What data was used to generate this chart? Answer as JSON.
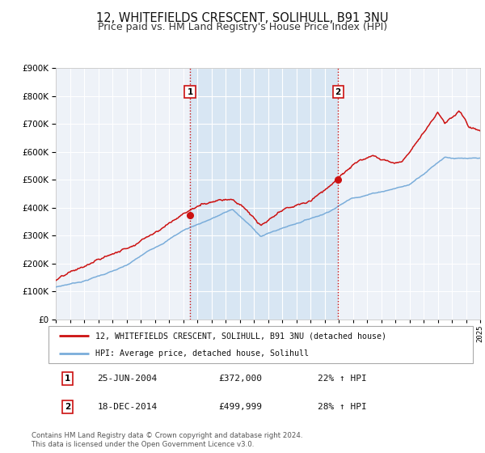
{
  "title": "12, WHITEFIELDS CRESCENT, SOLIHULL, B91 3NU",
  "subtitle": "Price paid vs. HM Land Registry's House Price Index (HPI)",
  "title_fontsize": 10.5,
  "subtitle_fontsize": 9,
  "hpi_color": "#7aadda",
  "price_color": "#cc1111",
  "sale1_year": 2004.486,
  "sale1_price": 372000,
  "sale1_label": "25-JUN-2004",
  "sale1_pct": "22%",
  "sale2_year": 2014.956,
  "sale2_price": 499999,
  "sale2_label": "18-DEC-2014",
  "sale2_pct": "28%",
  "xmin": 1995,
  "xmax": 2025,
  "ymin": 0,
  "ymax": 900000,
  "yticks": [
    0,
    100000,
    200000,
    300000,
    400000,
    500000,
    600000,
    700000,
    800000,
    900000
  ],
  "legend_label_price": "12, WHITEFIELDS CRESCENT, SOLIHULL, B91 3NU (detached house)",
  "legend_label_hpi": "HPI: Average price, detached house, Solihull",
  "footnote1": "Contains HM Land Registry data © Crown copyright and database right 2024.",
  "footnote2": "This data is licensed under the Open Government Licence v3.0.",
  "background_color": "#ffffff",
  "plot_bg_color": "#eef2f8",
  "grid_color": "#ffffff",
  "shaded_region_color": "#d8e6f3"
}
